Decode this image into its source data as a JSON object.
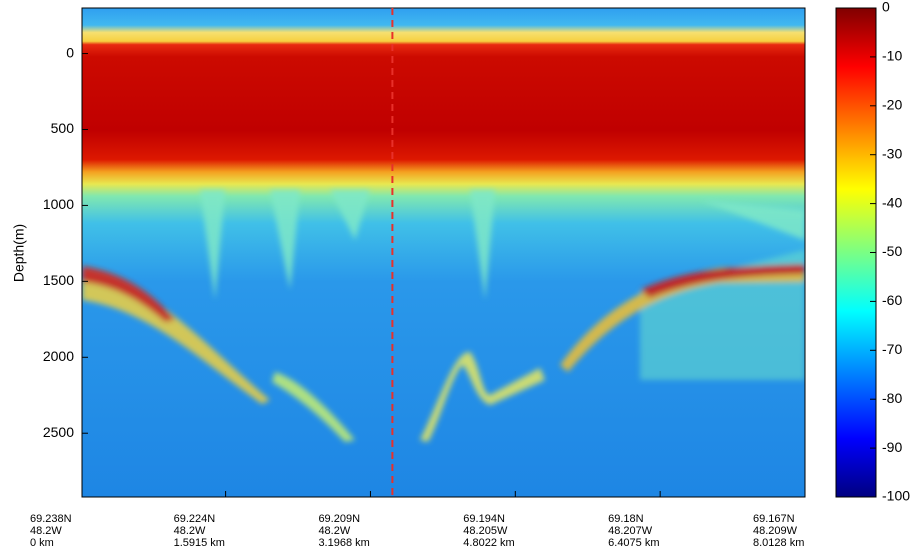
{
  "chart_data": {
    "type": "radargram",
    "ylabel": "Depth(m)",
    "ylim": [
      -300,
      2920
    ],
    "yticks": [
      0,
      500,
      1000,
      1500,
      2000,
      2500
    ],
    "xlim": [
      0,
      8.0128
    ],
    "xticks": [
      {
        "value": 0,
        "label": "0 km"
      },
      {
        "value": 1.5915,
        "label": "1.5915 km"
      },
      {
        "value": 3.1968,
        "label": "3.1968 km"
      },
      {
        "value": 4.8022,
        "label": "4.8022 km"
      },
      {
        "value": 6.4075,
        "label": "6.4075 km"
      },
      {
        "value": 8.0128,
        "label": "8.0128 km"
      }
    ],
    "xtick_lat": [
      "69.238N",
      "69.224N",
      "69.209N",
      "69.194N",
      "69.18N",
      "69.167N"
    ],
    "xtick_lon": [
      "48.2W",
      "48.2W",
      "48.2W",
      "48.205W",
      "48.207W",
      "48.209W"
    ],
    "marker_x": 3.44,
    "marker_color": "#e8302a",
    "clim": [
      -100,
      0
    ],
    "cticks": [
      0,
      -10,
      -20,
      -30,
      -40,
      -50,
      -60,
      -70,
      -80,
      -90,
      -100
    ]
  }
}
